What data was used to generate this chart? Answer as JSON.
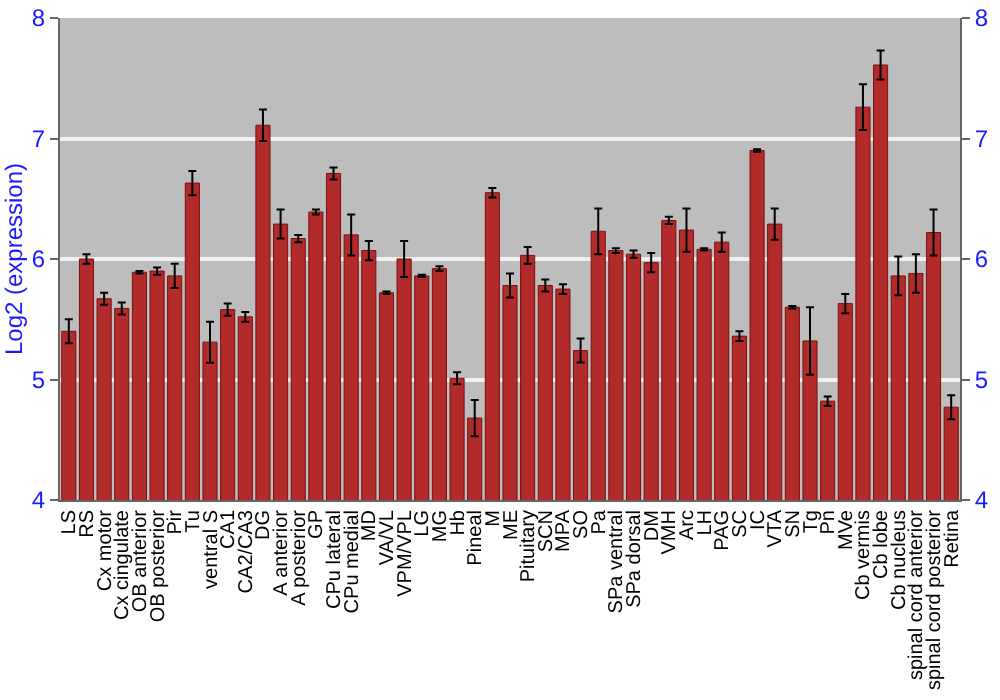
{
  "chart_data": {
    "type": "bar",
    "ylabel": "Log2 (expression)",
    "categories": [
      "LS",
      "RS",
      "Cx motor",
      "Cx cingulate",
      "OB anterior",
      "OB posterior",
      "Pir",
      "Tu",
      "ventral S",
      "CA1",
      "CA2/CA3",
      "DG",
      "A anterior",
      "A posterior",
      "GP",
      "CPu lateral",
      "CPu medial",
      "MD",
      "VA/VL",
      "VPM/VPL",
      "LG",
      "MG",
      "Hb",
      "Pineal",
      "M",
      "ME",
      "Pituitary",
      "SCN",
      "MPA",
      "SO",
      "Pa",
      "SPa ventral",
      "SPa dorsal",
      "DM",
      "VMH",
      "Arc",
      "LH",
      "PAG",
      "SC",
      "IC",
      "VTA",
      "SN",
      "Tg",
      "Pn",
      "MVe",
      "Cb vermis",
      "Cb lobe",
      "Cb nucleus",
      "spinal cord anterior",
      "spinal cord posterior",
      "Retina"
    ],
    "values": [
      5.4,
      6.0,
      5.67,
      5.59,
      5.89,
      5.9,
      5.86,
      6.63,
      5.31,
      5.58,
      5.52,
      7.11,
      6.29,
      6.17,
      6.39,
      6.71,
      6.2,
      6.07,
      5.72,
      6.0,
      5.86,
      5.92,
      5.01,
      4.68,
      6.55,
      5.78,
      6.03,
      5.78,
      5.75,
      5.24,
      6.23,
      6.07,
      6.04,
      5.97,
      6.32,
      6.24,
      6.08,
      6.14,
      5.36,
      6.9,
      6.29,
      5.6,
      5.32,
      4.82,
      5.63,
      7.26,
      7.61,
      5.86,
      5.88,
      6.22,
      4.77
    ],
    "errors": [
      0.1,
      0.04,
      0.05,
      0.05,
      0.01,
      0.03,
      0.1,
      0.1,
      0.17,
      0.05,
      0.04,
      0.13,
      0.12,
      0.03,
      0.02,
      0.05,
      0.17,
      0.08,
      0.01,
      0.15,
      0.01,
      0.02,
      0.05,
      0.15,
      0.04,
      0.1,
      0.07,
      0.05,
      0.04,
      0.1,
      0.19,
      0.02,
      0.03,
      0.08,
      0.03,
      0.18,
      0.01,
      0.08,
      0.04,
      0.01,
      0.13,
      0.01,
      0.28,
      0.04,
      0.08,
      0.19,
      0.12,
      0.16,
      0.16,
      0.19,
      0.1
    ],
    "color": "#b22a2a",
    "ylim": [
      4,
      8
    ],
    "yticks": [
      4,
      5,
      6,
      7,
      8
    ],
    "y2lim": [
      4,
      8
    ],
    "y2ticks": [
      4,
      5,
      6,
      7,
      8
    ],
    "grid": "y"
  }
}
